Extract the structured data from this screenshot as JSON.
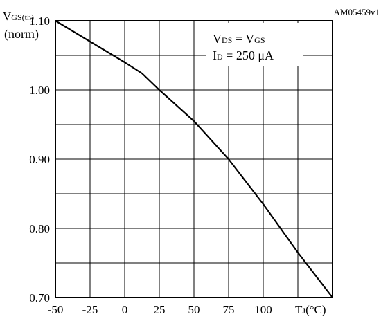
{
  "chart_data": {
    "type": "line",
    "figure_id": "AM05459v1",
    "ylabel_main": "V",
    "ylabel_sub": "GS(th)",
    "ylabel_line2": "(norm)",
    "xlabel_main": "T",
    "xlabel_sub": "J",
    "xlabel_unit": "(°C)",
    "annotation": {
      "line1": {
        "a": "V",
        "a_sub": "DS",
        "eq": " = ",
        "b": "V",
        "b_sub": "GS"
      },
      "line2": {
        "a": "I",
        "a_sub": "D",
        "eq": " = 250 μA"
      }
    },
    "x_ticks": [
      -50,
      -25,
      0,
      25,
      50,
      75,
      100
    ],
    "x_tick_labels": [
      "-50",
      "-25",
      "0",
      "25",
      "50",
      "75",
      "100"
    ],
    "y_tick_labels": [
      {
        "value": 1.1,
        "label": "1.10"
      },
      {
        "value": 1.0,
        "label": "1.00"
      },
      {
        "value": 0.9,
        "label": "0.90"
      },
      {
        "value": 0.8,
        "label": "0.80"
      },
      {
        "value": 0.7,
        "label": "0.70"
      }
    ],
    "xlim": [
      -50,
      150
    ],
    "ylim": [
      0.7,
      1.1
    ],
    "grid": true,
    "x_grid_step": 25,
    "y_grid_step": 0.05,
    "series": [
      {
        "x": [
          -50,
          -25,
          0,
          12.5,
          25,
          50,
          75,
          100,
          125,
          150
        ],
        "values": [
          1.1,
          1.07,
          1.04,
          1.024,
          1.0,
          0.955,
          0.9,
          0.835,
          0.765,
          0.7
        ]
      }
    ]
  }
}
